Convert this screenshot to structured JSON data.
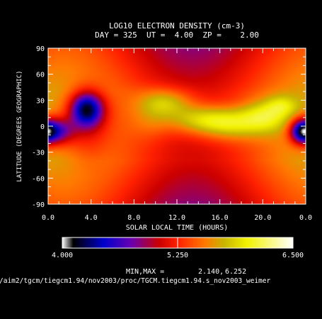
{
  "chart_data": {
    "type": "heatmap",
    "title": "LOG10 ELECTRON DENSITY (cm-3)",
    "subtitle": "DAY = 325  UT =  4.00  ZP =    2.00",
    "xlabel": "SOLAR LOCAL TIME (HOURS)",
    "ylabel": "LATITUDE (DEGREES GEOGRAPHIC)",
    "xlim": [
      0,
      24
    ],
    "ylim": [
      -90,
      90
    ],
    "x_ticks": [
      "0.0",
      "4.0",
      "8.0",
      "12.0",
      "16.0",
      "20.0",
      "0.0"
    ],
    "y_ticks": [
      "-90",
      "-60",
      "-30",
      "0",
      "30",
      "60",
      "90"
    ],
    "colorbar": {
      "min": 4.0,
      "max": 6.5,
      "labels": [
        "4.000",
        "5.250",
        "6.500"
      ],
      "stops": [
        {
          "v": 4.0,
          "color": "#ffffff"
        },
        {
          "v": 4.12,
          "color": "#000000"
        },
        {
          "v": 4.45,
          "color": "#0000cc"
        },
        {
          "v": 4.75,
          "color": "#6a00b0"
        },
        {
          "v": 5.05,
          "color": "#cc0000"
        },
        {
          "v": 5.25,
          "color": "#ff2000"
        },
        {
          "v": 5.55,
          "color": "#ff7a00"
        },
        {
          "v": 5.75,
          "color": "#c8b400"
        },
        {
          "v": 6.0,
          "color": "#f2f200"
        },
        {
          "v": 6.5,
          "color": "#ffffff"
        }
      ]
    },
    "min_max_label": "MIN,MAX =",
    "min_value": "2.140,",
    "max_value": "6.252",
    "features": [
      {
        "name": "morning depletion trough",
        "lt": 3.6,
        "lat": 18,
        "value": 4.1
      },
      {
        "name": "pre-dawn minimum",
        "lt": 0.6,
        "lat": -6,
        "value": 4.2
      },
      {
        "name": "post-midnight minimum",
        "lt": 23.6,
        "lat": -6,
        "value": 4.3
      },
      {
        "name": "daytime crest north",
        "lt": 12.4,
        "lat": 24,
        "value": 6.15
      },
      {
        "name": "equatorial crest",
        "lt": 15.5,
        "lat": 2,
        "value": 6.25
      },
      {
        "name": "afternoon crest",
        "lt": 20.5,
        "lat": 12,
        "value": 6.1
      }
    ]
  },
  "footer_path": "/aim2/tgcm/tiegcm1.94/nov2003/proc/TGCM.tiegcm1.94.s_nov2003_weimer"
}
